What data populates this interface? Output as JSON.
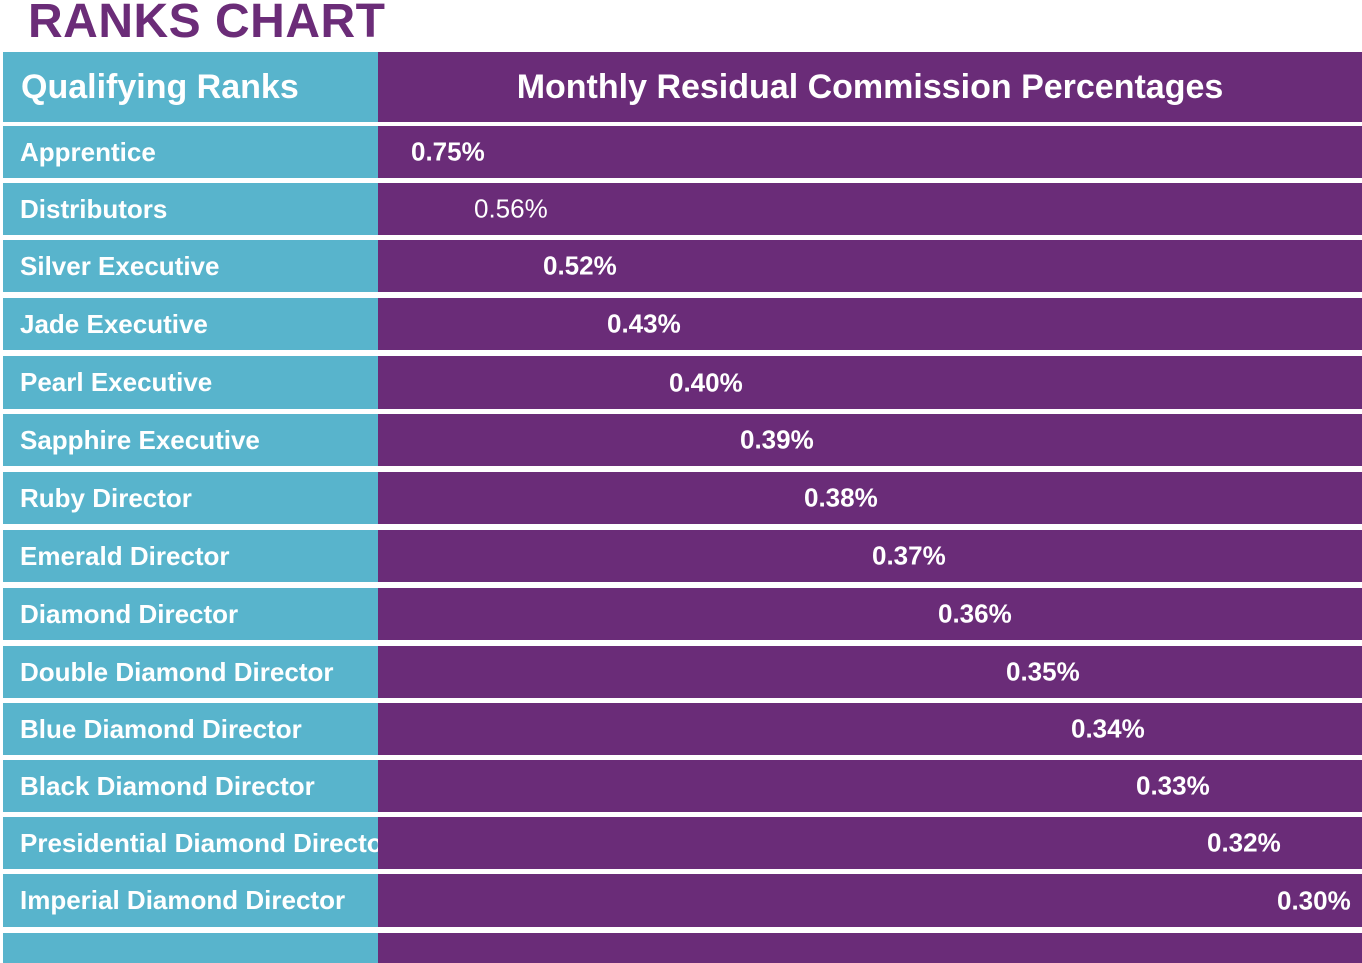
{
  "title": "RANKS CHART",
  "header": {
    "left": "Qualifying Ranks",
    "right": "Monthly Residual Commission Percentages"
  },
  "colors": {
    "title": "#6b2c78",
    "rank_column": "#58b4cc",
    "percent_column": "#6a2c78",
    "divider": "#ffffff"
  },
  "rows": [
    {
      "rank": "Apprentice",
      "percent": "0.75%"
    },
    {
      "rank": "Distributors",
      "percent": "0.56%"
    },
    {
      "rank": "Silver Executive",
      "percent": "0.52%"
    },
    {
      "rank": "Jade Executive",
      "percent": "0.43%"
    },
    {
      "rank": "Pearl Executive",
      "percent": "0.40%"
    },
    {
      "rank": "Sapphire Executive",
      "percent": "0.39%"
    },
    {
      "rank": "Ruby Director",
      "percent": "0.38%"
    },
    {
      "rank": "Emerald Director",
      "percent": "0.37%"
    },
    {
      "rank": "Diamond Director",
      "percent": "0.36%"
    },
    {
      "rank": "Double Diamond Director",
      "percent": "0.35%"
    },
    {
      "rank": "Blue Diamond Director",
      "percent": "0.34%"
    },
    {
      "rank": "Black Diamond Director",
      "percent": "0.33%"
    },
    {
      "rank": "Presidential Diamond Director",
      "percent": "0.32%"
    },
    {
      "rank": "Imperial Diamond Director",
      "percent": "0.30%"
    }
  ]
}
